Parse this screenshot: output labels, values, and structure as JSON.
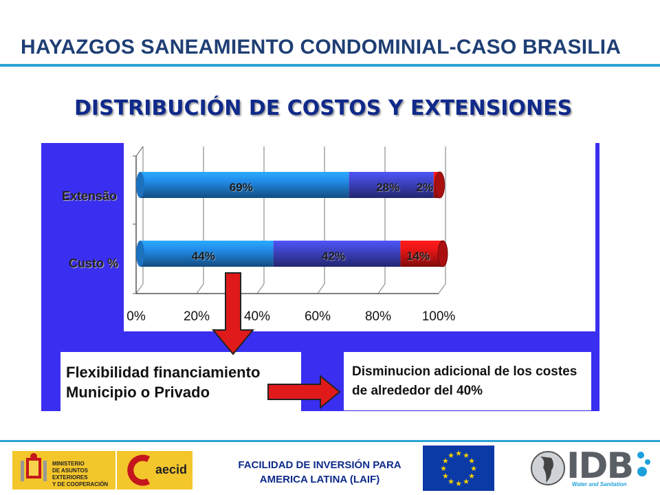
{
  "header": {
    "title": "HAYAZGOS SANEAMIENTO CONDOMINIAL-CASO BRASILIA",
    "subtitle": "DISTRIBUCIÓN DE COSTOS Y EXTENSIONES"
  },
  "chart_data": {
    "type": "bar",
    "orientation": "horizontal-stacked-100",
    "categories": [
      "Extensão",
      "Custo %"
    ],
    "series": [
      {
        "values": [
          69,
          44
        ],
        "color": "#1f7fd4"
      },
      {
        "values": [
          28,
          42
        ],
        "color": "#3a3fb8"
      },
      {
        "values": [
          2,
          14
        ],
        "color": "#d41414"
      }
    ],
    "bar_labels": [
      [
        "69%",
        "28%",
        "2%"
      ],
      [
        "44%",
        "42%",
        "14%"
      ]
    ],
    "x_ticks": [
      "0%",
      "20%",
      "40%",
      "60%",
      "80%",
      "100%"
    ],
    "xlim": [
      0,
      100
    ],
    "grid": true
  },
  "boxes": {
    "left_text": "Flexibilidad financiamiento Municipio o Privado",
    "right_text": "Disminucion adicional de los costes de alrededor del 40%"
  },
  "footer": {
    "line1": "FACILIDAD DE INVERSIÓN PARA",
    "line2": "AMERICA LATINA (LAIF)"
  },
  "logos": {
    "ministry_line1": "MINISTERIO",
    "ministry_line2": "DE ASUNTOS EXTERIORES",
    "ministry_line3": "Y DE COOPERACIÓN",
    "aecid": "aecid",
    "idb": "IDB",
    "idb_sub": "Water and Sanitation"
  }
}
